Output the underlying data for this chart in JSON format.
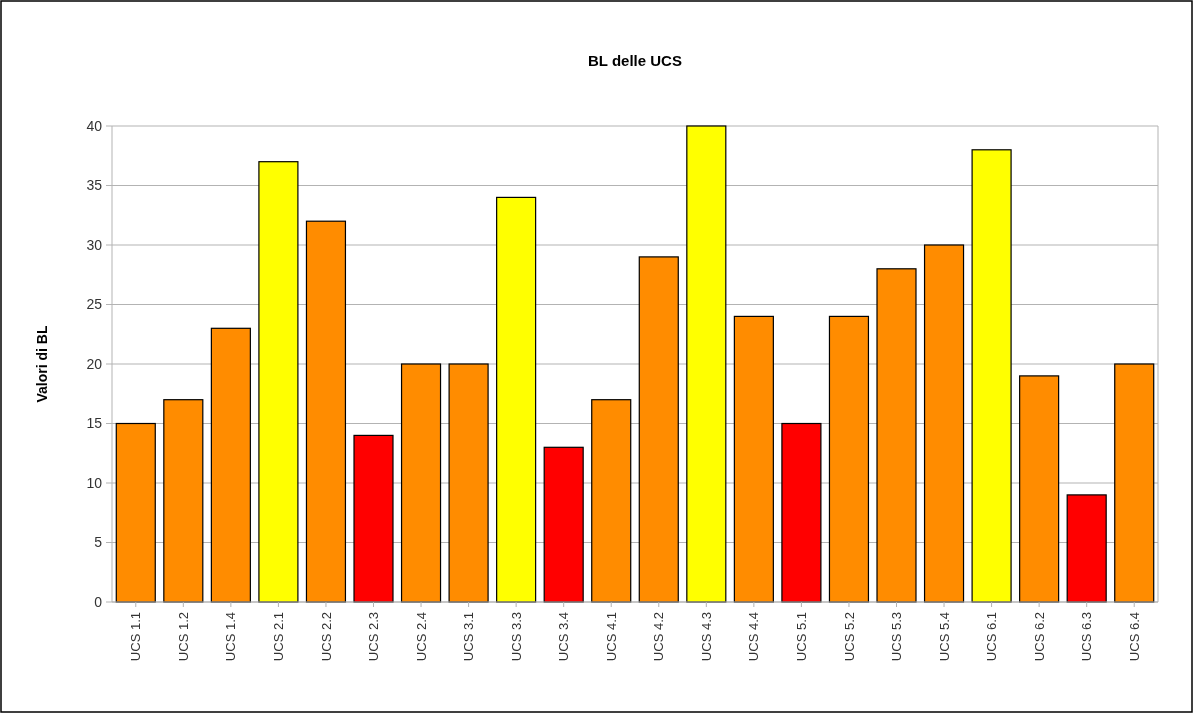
{
  "chart_data": {
    "type": "bar",
    "title": "BL delle UCS",
    "ylabel": "Valori di BL",
    "categories": [
      "UCS 1.1",
      "UCS 1.2",
      "UCS 1.4",
      "UCS 2.1",
      "UCS 2.2",
      "UCS 2.3",
      "UCS 2.4",
      "UCS 3.1",
      "UCS 3.3",
      "UCS 3.4",
      "UCS 4.1",
      "UCS 4.2",
      "UCS 4.3",
      "UCS 4.4",
      "UCS 5.1",
      "UCS 5.2",
      "UCS 5.3",
      "UCS 5.4",
      "UCS 6.1",
      "UCS 6.2",
      "UCS 6.3",
      "UCS 6.4"
    ],
    "values": [
      15,
      17,
      23,
      37,
      32,
      14,
      20,
      20,
      34,
      13,
      17,
      29,
      40,
      24,
      15,
      24,
      28,
      30,
      38,
      19,
      9,
      20
    ],
    "colors": [
      "#ff8c00",
      "#ff8c00",
      "#ff8c00",
      "#ffff00",
      "#ff8c00",
      "#ff0000",
      "#ff8c00",
      "#ff8c00",
      "#ffff00",
      "#ff0000",
      "#ff8c00",
      "#ff8c00",
      "#ffff00",
      "#ff8c00",
      "#ff0000",
      "#ff8c00",
      "#ff8c00",
      "#ff8c00",
      "#ffff00",
      "#ff8c00",
      "#ff0000",
      "#ff8c00"
    ],
    "ylim": [
      0,
      40
    ],
    "yticks": [
      0,
      5,
      10,
      15,
      20,
      25,
      30,
      35,
      40
    ],
    "grid": "y"
  }
}
